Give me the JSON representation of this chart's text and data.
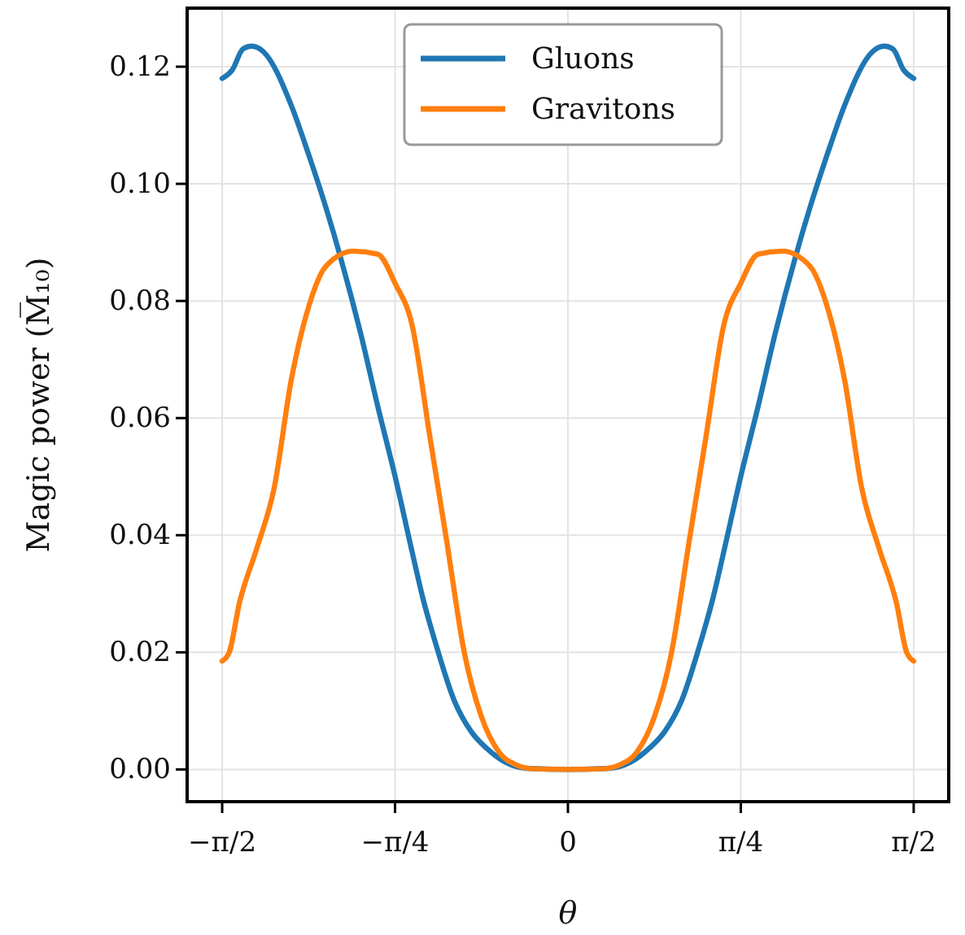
{
  "chart_data": {
    "type": "line",
    "xlabel": "θ",
    "ylabel": "Magic power (M̅₁₀)",
    "xlim": [
      -1.73,
      1.73
    ],
    "ylim": [
      -0.0055,
      0.13
    ],
    "xticks": [
      {
        "value": -1.5708,
        "label": "−π/2"
      },
      {
        "value": -0.7854,
        "label": "−π/4"
      },
      {
        "value": 0,
        "label": "0"
      },
      {
        "value": 0.7854,
        "label": "π/4"
      },
      {
        "value": 1.5708,
        "label": "π/2"
      }
    ],
    "yticks": [
      {
        "value": 0,
        "label": "0.00"
      },
      {
        "value": 0.02,
        "label": "0.02"
      },
      {
        "value": 0.04,
        "label": "0.04"
      },
      {
        "value": 0.06,
        "label": "0.06"
      },
      {
        "value": 0.08,
        "label": "0.08"
      },
      {
        "value": 0.1,
        "label": "0.10"
      },
      {
        "value": 0.12,
        "label": "0.12"
      }
    ],
    "grid": true,
    "legend": "top",
    "line_style": "solid",
    "marker": "none",
    "series": [
      {
        "name": "Gluons",
        "color": "#1f77b4",
        "x": [
          -1.571,
          -1.524,
          -1.477,
          -1.437,
          -1.382,
          -1.257,
          -1.178,
          -1.1,
          -1.032,
          -0.942,
          -0.864,
          -0.785,
          -0.707,
          -0.66,
          -0.597,
          -0.518,
          -0.44,
          -0.369,
          -0.283,
          -0.188,
          0,
          0.188,
          0.283,
          0.369,
          0.44,
          0.518,
          0.597,
          0.66,
          0.707,
          0.785,
          0.864,
          0.942,
          1.032,
          1.1,
          1.178,
          1.257,
          1.382,
          1.437,
          1.477,
          1.524,
          1.571
        ],
        "values": [
          0.118,
          0.1195,
          0.123,
          0.1235,
          0.1225,
          0.1134,
          0.105,
          0.096,
          0.0873,
          0.0745,
          0.062,
          0.05,
          0.037,
          0.0294,
          0.021,
          0.0119,
          0.0065,
          0.0036,
          0.0012,
          0.0002,
          0,
          0.0002,
          0.0012,
          0.0036,
          0.0065,
          0.0119,
          0.021,
          0.0294,
          0.037,
          0.05,
          0.062,
          0.0745,
          0.0873,
          0.096,
          0.105,
          0.1134,
          0.1225,
          0.1235,
          0.123,
          0.1195,
          0.118
        ]
      },
      {
        "name": "Gravitons",
        "color": "#ff7f0e",
        "x": [
          -1.571,
          -1.539,
          -1.492,
          -1.414,
          -1.335,
          -1.257,
          -1.178,
          -1.1,
          -0.974,
          -0.864,
          -0.785,
          -0.707,
          -0.628,
          -0.55,
          -0.471,
          -0.393,
          -0.314,
          -0.236,
          -0.157,
          0,
          0.157,
          0.236,
          0.314,
          0.393,
          0.471,
          0.55,
          0.628,
          0.707,
          0.785,
          0.864,
          0.974,
          1.1,
          1.178,
          1.257,
          1.335,
          1.414,
          1.492,
          1.539,
          1.571
        ],
        "values": [
          0.0185,
          0.02,
          0.0285,
          0.0377,
          0.048,
          0.0665,
          0.079,
          0.0859,
          0.0885,
          0.088,
          0.083,
          0.0757,
          0.057,
          0.0388,
          0.02,
          0.009,
          0.003,
          0.0008,
          0.0001,
          0,
          0.0001,
          0.0008,
          0.003,
          0.009,
          0.02,
          0.0388,
          0.057,
          0.0757,
          0.083,
          0.088,
          0.0885,
          0.0859,
          0.079,
          0.0665,
          0.048,
          0.0377,
          0.0285,
          0.02,
          0.0185
        ]
      }
    ]
  }
}
